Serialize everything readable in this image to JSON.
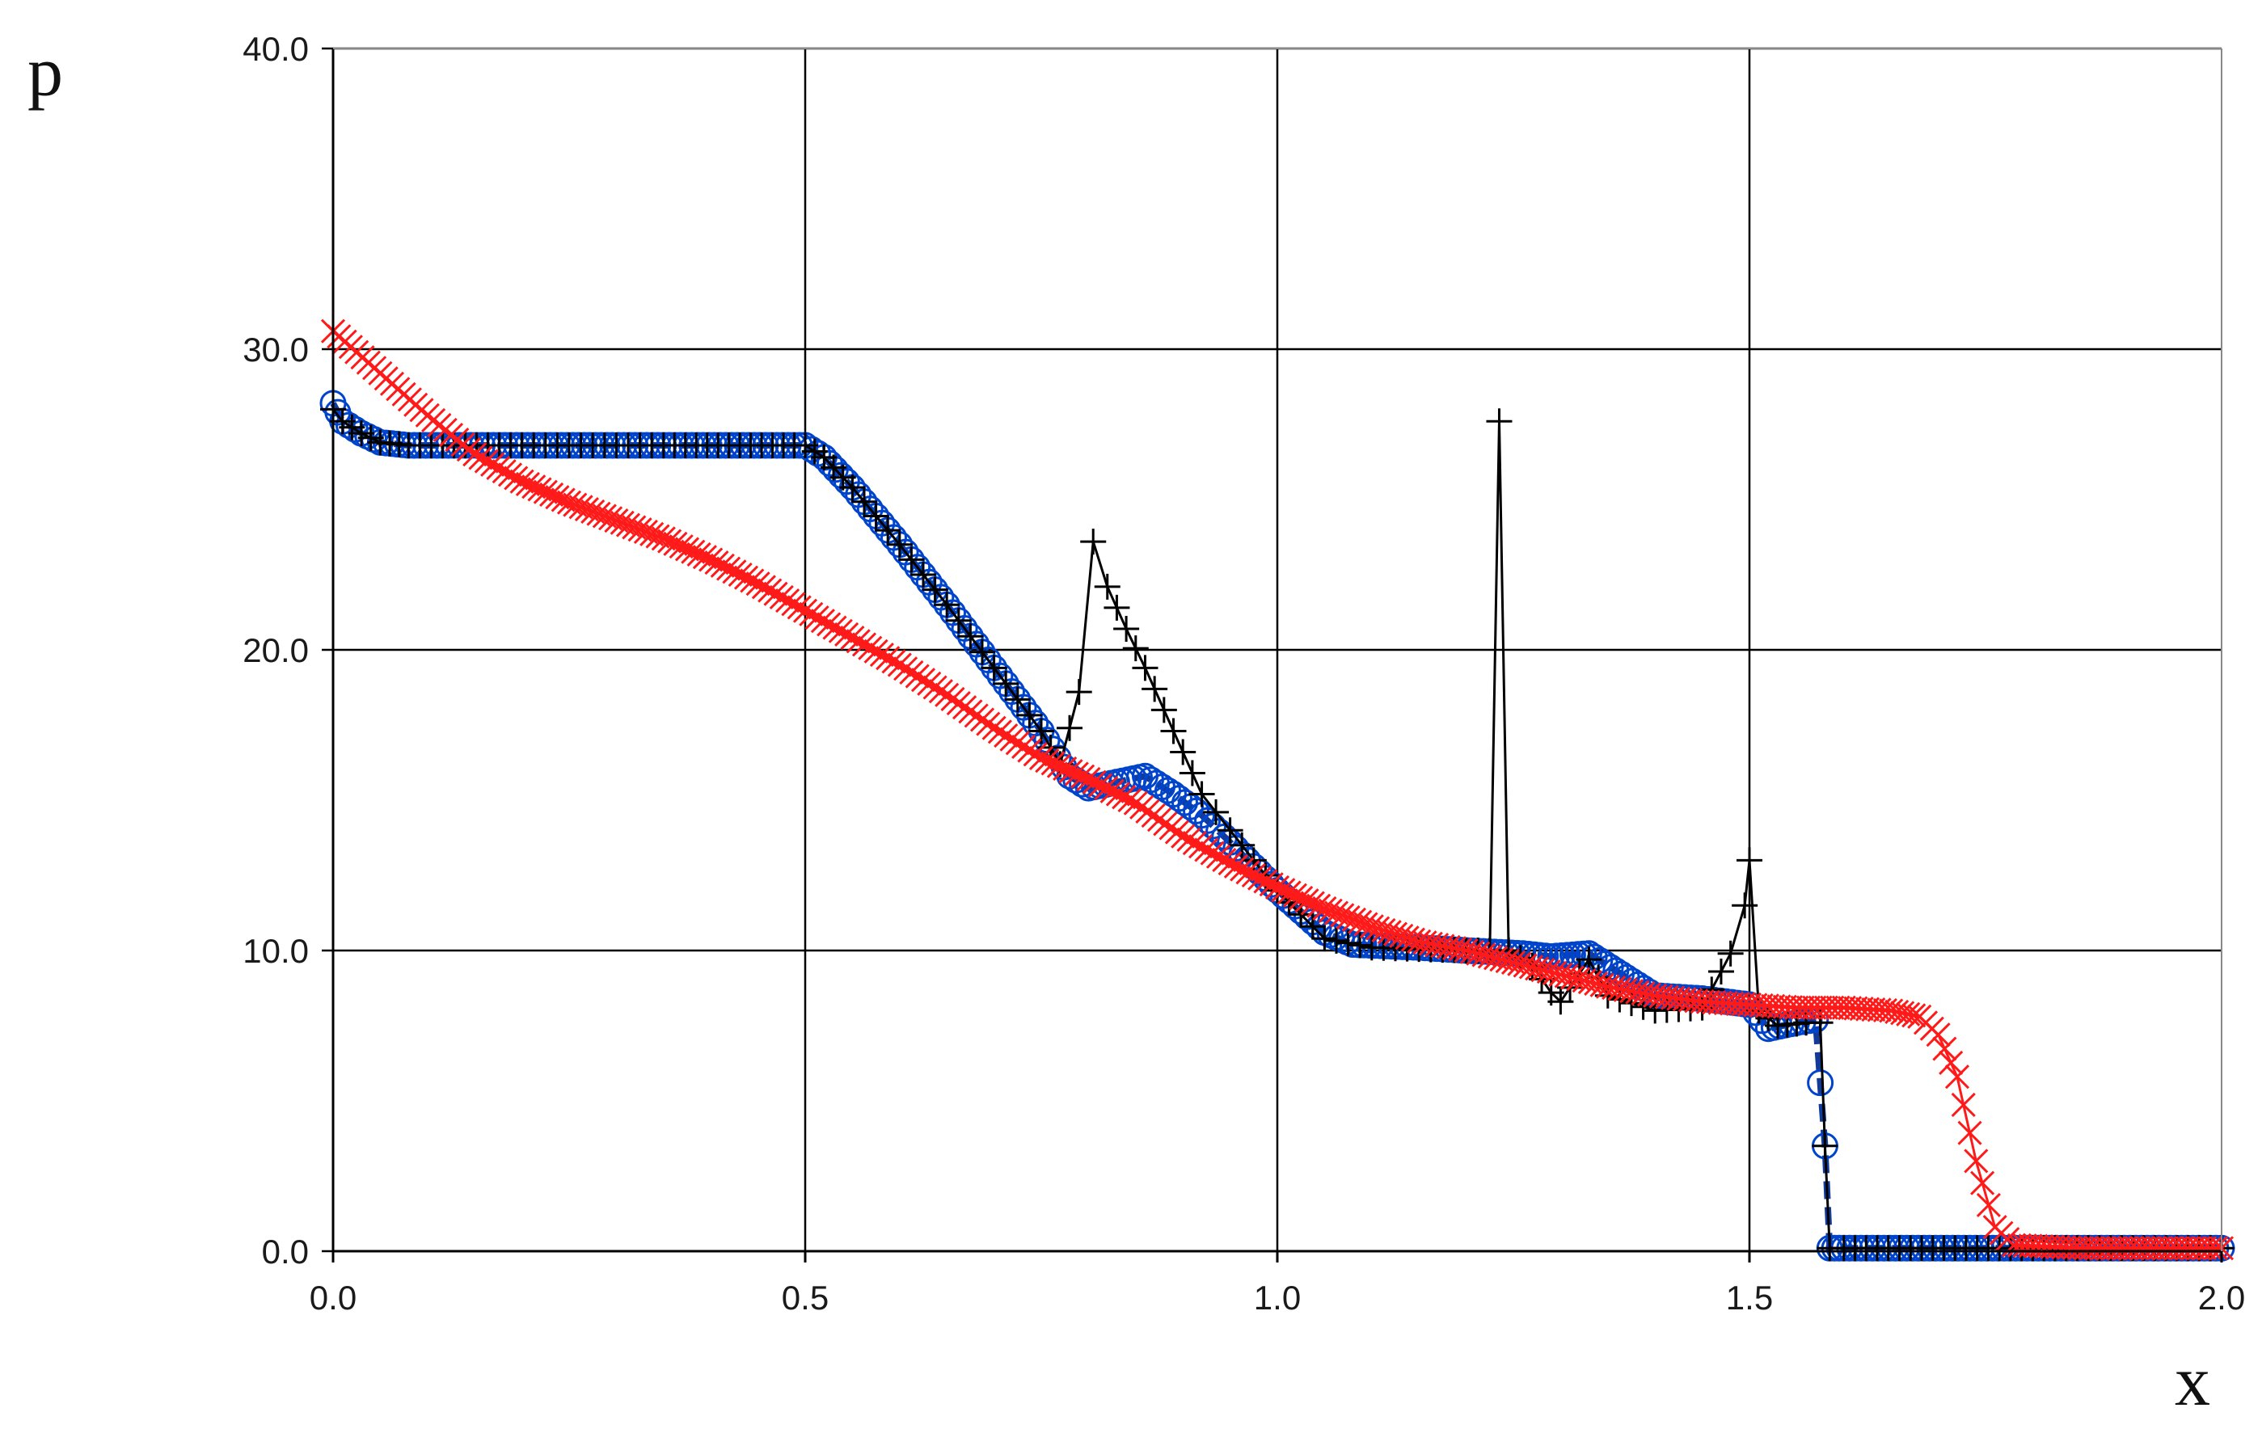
{
  "chart_data": {
    "type": "line",
    "title": "",
    "xlabel": "x",
    "ylabel": "p",
    "xlim": [
      0.0,
      2.0
    ],
    "ylim": [
      0.0,
      40.0
    ],
    "x_ticks": [
      "0.0",
      "0.5",
      "1.0",
      "1.5",
      "2.0"
    ],
    "y_ticks": [
      "0.0",
      "10.0",
      "20.0",
      "30.0",
      "40.0"
    ],
    "grid": true,
    "legend": "none",
    "series": [
      {
        "color": "#0044cc",
        "marker": "circle",
        "line": "dashed",
        "points": [
          [
            0.0,
            28.2
          ],
          [
            0.01,
            27.6
          ],
          [
            0.03,
            27.2
          ],
          [
            0.05,
            26.9
          ],
          [
            0.08,
            26.8
          ],
          [
            0.2,
            26.8
          ],
          [
            0.35,
            26.8
          ],
          [
            0.5,
            26.8
          ],
          [
            0.52,
            26.4
          ],
          [
            0.55,
            25.4
          ],
          [
            0.6,
            23.5
          ],
          [
            0.65,
            21.5
          ],
          [
            0.7,
            19.4
          ],
          [
            0.75,
            17.3
          ],
          [
            0.78,
            15.8
          ],
          [
            0.8,
            15.4
          ],
          [
            0.83,
            15.6
          ],
          [
            0.86,
            15.8
          ],
          [
            0.89,
            15.2
          ],
          [
            0.92,
            14.5
          ],
          [
            0.95,
            13.6
          ],
          [
            1.0,
            12.0
          ],
          [
            1.05,
            10.6
          ],
          [
            1.08,
            10.2
          ],
          [
            1.15,
            10.1
          ],
          [
            1.2,
            10.0
          ],
          [
            1.26,
            9.9
          ],
          [
            1.29,
            9.8
          ],
          [
            1.33,
            9.9
          ],
          [
            1.37,
            9.1
          ],
          [
            1.4,
            8.5
          ],
          [
            1.45,
            8.4
          ],
          [
            1.5,
            8.2
          ],
          [
            1.52,
            7.4
          ],
          [
            1.55,
            7.6
          ],
          [
            1.57,
            7.7
          ],
          [
            1.58,
            3.5
          ],
          [
            1.585,
            0.1
          ],
          [
            1.6,
            0.1
          ],
          [
            1.8,
            0.1
          ],
          [
            2.0,
            0.1
          ]
        ]
      },
      {
        "color": "#000000",
        "marker": "plus",
        "line": "solid",
        "points": [
          [
            0.0,
            28.0
          ],
          [
            0.01,
            27.6
          ],
          [
            0.03,
            27.2
          ],
          [
            0.05,
            26.9
          ],
          [
            0.08,
            26.8
          ],
          [
            0.2,
            26.8
          ],
          [
            0.35,
            26.8
          ],
          [
            0.5,
            26.8
          ],
          [
            0.52,
            26.4
          ],
          [
            0.55,
            25.4
          ],
          [
            0.6,
            23.5
          ],
          [
            0.65,
            21.5
          ],
          [
            0.7,
            19.4
          ],
          [
            0.75,
            17.3
          ],
          [
            0.77,
            16.2
          ],
          [
            0.79,
            18.6
          ],
          [
            0.805,
            23.6
          ],
          [
            0.82,
            22.1
          ],
          [
            0.84,
            20.7
          ],
          [
            0.86,
            19.4
          ],
          [
            0.88,
            18.0
          ],
          [
            0.9,
            16.6
          ],
          [
            0.92,
            15.2
          ],
          [
            0.95,
            14.0
          ],
          [
            1.0,
            12.0
          ],
          [
            1.05,
            10.4
          ],
          [
            1.1,
            10.1
          ],
          [
            1.2,
            10.0
          ],
          [
            1.225,
            10.0
          ],
          [
            1.235,
            27.6
          ],
          [
            1.245,
            10.0
          ],
          [
            1.27,
            9.5
          ],
          [
            1.29,
            8.6
          ],
          [
            1.3,
            8.3
          ],
          [
            1.33,
            9.7
          ],
          [
            1.35,
            8.5
          ],
          [
            1.4,
            8.0
          ],
          [
            1.45,
            8.1
          ],
          [
            1.48,
            9.9
          ],
          [
            1.495,
            11.5
          ],
          [
            1.5,
            13.0
          ],
          [
            1.51,
            8.0
          ],
          [
            1.53,
            7.5
          ],
          [
            1.56,
            7.6
          ],
          [
            1.575,
            7.6
          ],
          [
            1.58,
            3.5
          ],
          [
            1.585,
            0.1
          ],
          [
            1.6,
            0.1
          ],
          [
            1.8,
            0.1
          ],
          [
            2.0,
            0.1
          ]
        ]
      },
      {
        "color": "#ff1a1a",
        "marker": "x",
        "line": "solid",
        "points": [
          [
            0.0,
            30.6
          ],
          [
            0.05,
            29.2
          ],
          [
            0.1,
            27.8
          ],
          [
            0.15,
            26.5
          ],
          [
            0.2,
            25.6
          ],
          [
            0.25,
            24.9
          ],
          [
            0.3,
            24.3
          ],
          [
            0.35,
            23.7
          ],
          [
            0.4,
            23.0
          ],
          [
            0.45,
            22.2
          ],
          [
            0.5,
            21.3
          ],
          [
            0.55,
            20.4
          ],
          [
            0.6,
            19.5
          ],
          [
            0.65,
            18.5
          ],
          [
            0.7,
            17.4
          ],
          [
            0.75,
            16.4
          ],
          [
            0.8,
            15.7
          ],
          [
            0.85,
            14.9
          ],
          [
            0.9,
            13.8
          ],
          [
            0.95,
            12.9
          ],
          [
            1.0,
            12.1
          ],
          [
            1.05,
            11.4
          ],
          [
            1.1,
            10.8
          ],
          [
            1.15,
            10.3
          ],
          [
            1.2,
            10.0
          ],
          [
            1.25,
            9.6
          ],
          [
            1.3,
            9.2
          ],
          [
            1.35,
            8.8
          ],
          [
            1.4,
            8.5
          ],
          [
            1.45,
            8.3
          ],
          [
            1.5,
            8.2
          ],
          [
            1.55,
            8.1
          ],
          [
            1.6,
            8.1
          ],
          [
            1.65,
            8.0
          ],
          [
            1.68,
            7.8
          ],
          [
            1.7,
            7.2
          ],
          [
            1.72,
            5.8
          ],
          [
            1.74,
            3.0
          ],
          [
            1.76,
            0.8
          ],
          [
            1.78,
            0.2
          ],
          [
            1.85,
            0.1
          ],
          [
            2.0,
            0.1
          ]
        ]
      }
    ]
  }
}
